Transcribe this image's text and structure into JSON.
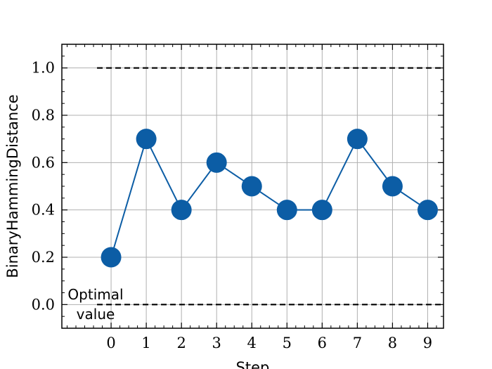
{
  "chart_data": {
    "type": "line",
    "xlabel": "Step",
    "ylabel": "BinaryHammingDistance",
    "xlim": [
      -1.4,
      9.45
    ],
    "ylim": [
      -0.1,
      1.1
    ],
    "x_ticks": [
      0,
      1,
      2,
      3,
      4,
      5,
      6,
      7,
      8,
      9
    ],
    "y_ticks": [
      0.0,
      0.2,
      0.4,
      0.6,
      0.8,
      1.0
    ],
    "y_tick_labels": [
      "0.0",
      "0.2",
      "0.4",
      "0.6",
      "0.8",
      "1.0"
    ],
    "grid": true,
    "series": [
      {
        "x": [
          0,
          1,
          2,
          3,
          4,
          5,
          6,
          7,
          8,
          9
        ],
        "y": [
          0.2,
          0.7,
          0.4,
          0.6,
          0.5,
          0.4,
          0.4,
          0.7,
          0.5,
          0.4
        ],
        "color": "#0c5da5",
        "marker": "circle"
      }
    ],
    "reference_lines": [
      {
        "y": 1.0,
        "style": "dashed",
        "color": "#000000"
      },
      {
        "y": 0.0,
        "style": "dashed",
        "color": "#000000"
      }
    ],
    "annotations": [
      {
        "text_lines": [
          "Optimal",
          "value"
        ]
      }
    ]
  }
}
